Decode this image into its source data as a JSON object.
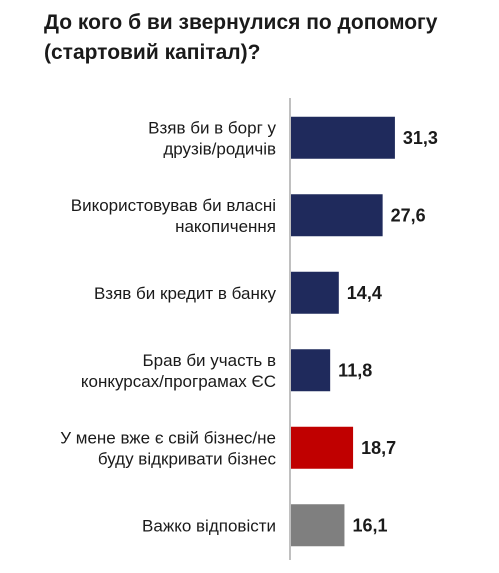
{
  "chart_data": {
    "type": "bar",
    "orientation": "horizontal",
    "title": "До кого б ви звернулися по допомогу (стартовий капітал)?",
    "categories": [
      [
        "Взяв би в борг у",
        "друзів/родичів"
      ],
      [
        "Використовував би власні",
        "накопичення"
      ],
      [
        "Взяв би кредит в банку"
      ],
      [
        "Брав би участь в",
        "конкурсах/програмах ЄС"
      ],
      [
        "У мене вже є свій бізнес/не",
        "буду відкривати бізнес"
      ],
      [
        "Важко відповісти"
      ]
    ],
    "values": [
      31.3,
      27.6,
      14.4,
      11.8,
      18.7,
      16.1
    ],
    "value_labels": [
      "31,3",
      "27,6",
      "14,4",
      "11,8",
      "18,7",
      "16,1"
    ],
    "bar_colors": [
      "#1f2a5c",
      "#1f2a5c",
      "#1f2a5c",
      "#1f2a5c",
      "#c00000",
      "#7f7f7f"
    ],
    "xlim": [
      0,
      40
    ],
    "grid": false,
    "legend": "none"
  }
}
